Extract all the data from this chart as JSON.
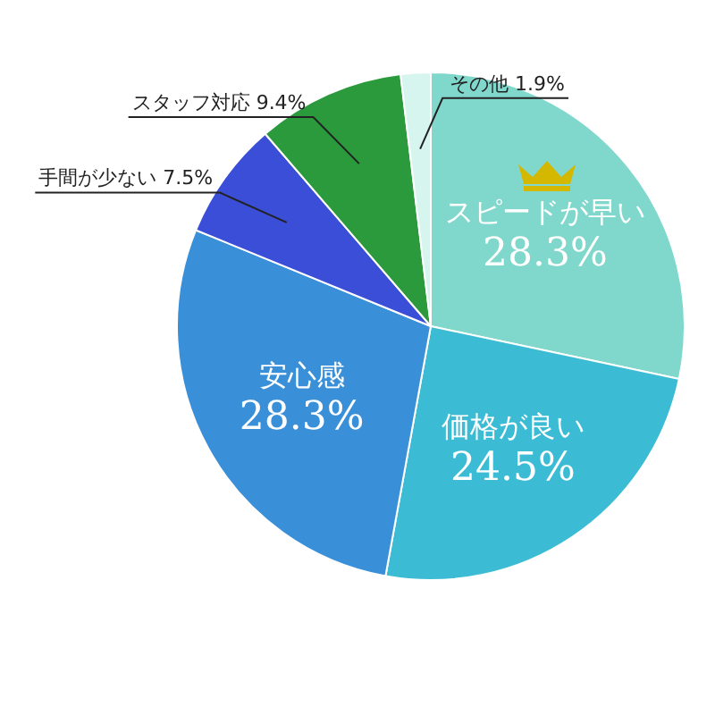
{
  "chart_data": {
    "type": "pie",
    "categories": [
      "スピードが早い",
      "価格が良い",
      "安心感",
      "手間が少ない",
      "スタッフ対応",
      "その他"
    ],
    "values": [
      28.3,
      24.5,
      28.3,
      7.5,
      9.4,
      1.9
    ],
    "value_labels": [
      "28.3%",
      "24.5%",
      "28.3%",
      "7.5%",
      "9.4%",
      "1.9%"
    ],
    "colors": [
      "#80d8cc",
      "#3cbcd4",
      "#3a90d8",
      "#3a4ed8",
      "#2a9a3c",
      "#d6f5ee"
    ],
    "legend": false
  }
}
